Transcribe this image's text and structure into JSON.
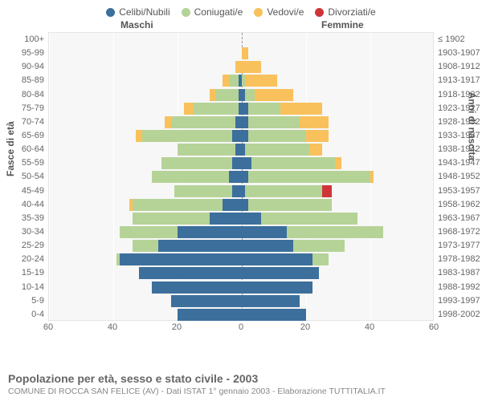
{
  "legend": [
    {
      "label": "Celibi/Nubili",
      "color": "#3c6f9c"
    },
    {
      "label": "Coniugati/e",
      "color": "#b5d397"
    },
    {
      "label": "Vedovi/e",
      "color": "#f9c15c"
    },
    {
      "label": "Divorziati/e",
      "color": "#cf3538"
    }
  ],
  "top_labels": {
    "m": "Maschi",
    "f": "Femmine"
  },
  "axis_titles": {
    "left": "Fasce di età",
    "right": "Anni di nascita"
  },
  "x_ticks": [
    60,
    40,
    20,
    0,
    20,
    40,
    60
  ],
  "x_max": 60,
  "colors": {
    "celibi": "#3c6f9c",
    "coniugati": "#b5d397",
    "vedovi": "#f9c15c",
    "divorziati": "#cf3538",
    "plot_bg": "#f7f7f7",
    "grid": "#ffffff"
  },
  "rows": [
    {
      "age": "100+",
      "birth": "≤ 1902",
      "m": {
        "c": 0,
        "k": 0,
        "v": 0,
        "d": 0
      },
      "f": {
        "c": 0,
        "k": 0,
        "v": 0,
        "d": 0
      }
    },
    {
      "age": "95-99",
      "birth": "1903-1907",
      "m": {
        "c": 0,
        "k": 0,
        "v": 0,
        "d": 0
      },
      "f": {
        "c": 0,
        "k": 0,
        "v": 2,
        "d": 0
      }
    },
    {
      "age": "90-94",
      "birth": "1908-1912",
      "m": {
        "c": 0,
        "k": 0,
        "v": 2,
        "d": 0
      },
      "f": {
        "c": 0,
        "k": 0,
        "v": 6,
        "d": 0
      }
    },
    {
      "age": "85-89",
      "birth": "1913-1917",
      "m": {
        "c": 1,
        "k": 3,
        "v": 2,
        "d": 0
      },
      "f": {
        "c": 0,
        "k": 1,
        "v": 10,
        "d": 0
      }
    },
    {
      "age": "80-84",
      "birth": "1918-1922",
      "m": {
        "c": 1,
        "k": 7,
        "v": 2,
        "d": 0
      },
      "f": {
        "c": 1,
        "k": 3,
        "v": 12,
        "d": 0
      }
    },
    {
      "age": "75-79",
      "birth": "1923-1927",
      "m": {
        "c": 1,
        "k": 14,
        "v": 3,
        "d": 0
      },
      "f": {
        "c": 2,
        "k": 10,
        "v": 13,
        "d": 0
      }
    },
    {
      "age": "70-74",
      "birth": "1928-1932",
      "m": {
        "c": 2,
        "k": 20,
        "v": 2,
        "d": 0
      },
      "f": {
        "c": 2,
        "k": 16,
        "v": 9,
        "d": 0
      }
    },
    {
      "age": "65-69",
      "birth": "1933-1937",
      "m": {
        "c": 3,
        "k": 28,
        "v": 2,
        "d": 0
      },
      "f": {
        "c": 2,
        "k": 18,
        "v": 7,
        "d": 0
      }
    },
    {
      "age": "60-64",
      "birth": "1938-1942",
      "m": {
        "c": 2,
        "k": 18,
        "v": 0,
        "d": 0
      },
      "f": {
        "c": 1,
        "k": 20,
        "v": 4,
        "d": 0
      }
    },
    {
      "age": "55-59",
      "birth": "1943-1947",
      "m": {
        "c": 3,
        "k": 22,
        "v": 0,
        "d": 0
      },
      "f": {
        "c": 3,
        "k": 26,
        "v": 2,
        "d": 0
      }
    },
    {
      "age": "50-54",
      "birth": "1948-1952",
      "m": {
        "c": 4,
        "k": 24,
        "v": 0,
        "d": 0
      },
      "f": {
        "c": 2,
        "k": 38,
        "v": 1,
        "d": 0
      }
    },
    {
      "age": "45-49",
      "birth": "1953-1957",
      "m": {
        "c": 3,
        "k": 18,
        "v": 0,
        "d": 0
      },
      "f": {
        "c": 1,
        "k": 24,
        "v": 0,
        "d": 3
      }
    },
    {
      "age": "40-44",
      "birth": "1958-1962",
      "m": {
        "c": 6,
        "k": 28,
        "v": 1,
        "d": 0
      },
      "f": {
        "c": 2,
        "k": 26,
        "v": 0,
        "d": 0
      }
    },
    {
      "age": "35-39",
      "birth": "1963-1967",
      "m": {
        "c": 10,
        "k": 24,
        "v": 0,
        "d": 0
      },
      "f": {
        "c": 6,
        "k": 30,
        "v": 0,
        "d": 0
      }
    },
    {
      "age": "30-34",
      "birth": "1968-1972",
      "m": {
        "c": 20,
        "k": 18,
        "v": 0,
        "d": 0
      },
      "f": {
        "c": 14,
        "k": 30,
        "v": 0,
        "d": 0
      }
    },
    {
      "age": "25-29",
      "birth": "1973-1977",
      "m": {
        "c": 26,
        "k": 8,
        "v": 0,
        "d": 0
      },
      "f": {
        "c": 16,
        "k": 16,
        "v": 0,
        "d": 0
      }
    },
    {
      "age": "20-24",
      "birth": "1978-1982",
      "m": {
        "c": 38,
        "k": 1,
        "v": 0,
        "d": 0
      },
      "f": {
        "c": 22,
        "k": 5,
        "v": 0,
        "d": 0
      }
    },
    {
      "age": "15-19",
      "birth": "1983-1987",
      "m": {
        "c": 32,
        "k": 0,
        "v": 0,
        "d": 0
      },
      "f": {
        "c": 24,
        "k": 0,
        "v": 0,
        "d": 0
      }
    },
    {
      "age": "10-14",
      "birth": "1988-1992",
      "m": {
        "c": 28,
        "k": 0,
        "v": 0,
        "d": 0
      },
      "f": {
        "c": 22,
        "k": 0,
        "v": 0,
        "d": 0
      }
    },
    {
      "age": "5-9",
      "birth": "1993-1997",
      "m": {
        "c": 22,
        "k": 0,
        "v": 0,
        "d": 0
      },
      "f": {
        "c": 18,
        "k": 0,
        "v": 0,
        "d": 0
      }
    },
    {
      "age": "0-4",
      "birth": "1998-2002",
      "m": {
        "c": 20,
        "k": 0,
        "v": 0,
        "d": 0
      },
      "f": {
        "c": 20,
        "k": 0,
        "v": 0,
        "d": 0
      }
    }
  ],
  "footer": {
    "title": "Popolazione per età, sesso e stato civile - 2003",
    "subtitle": "COMUNE DI ROCCA SAN FELICE (AV) - Dati ISTAT 1° gennaio 2003 - Elaborazione TUTTITALIA.IT"
  }
}
